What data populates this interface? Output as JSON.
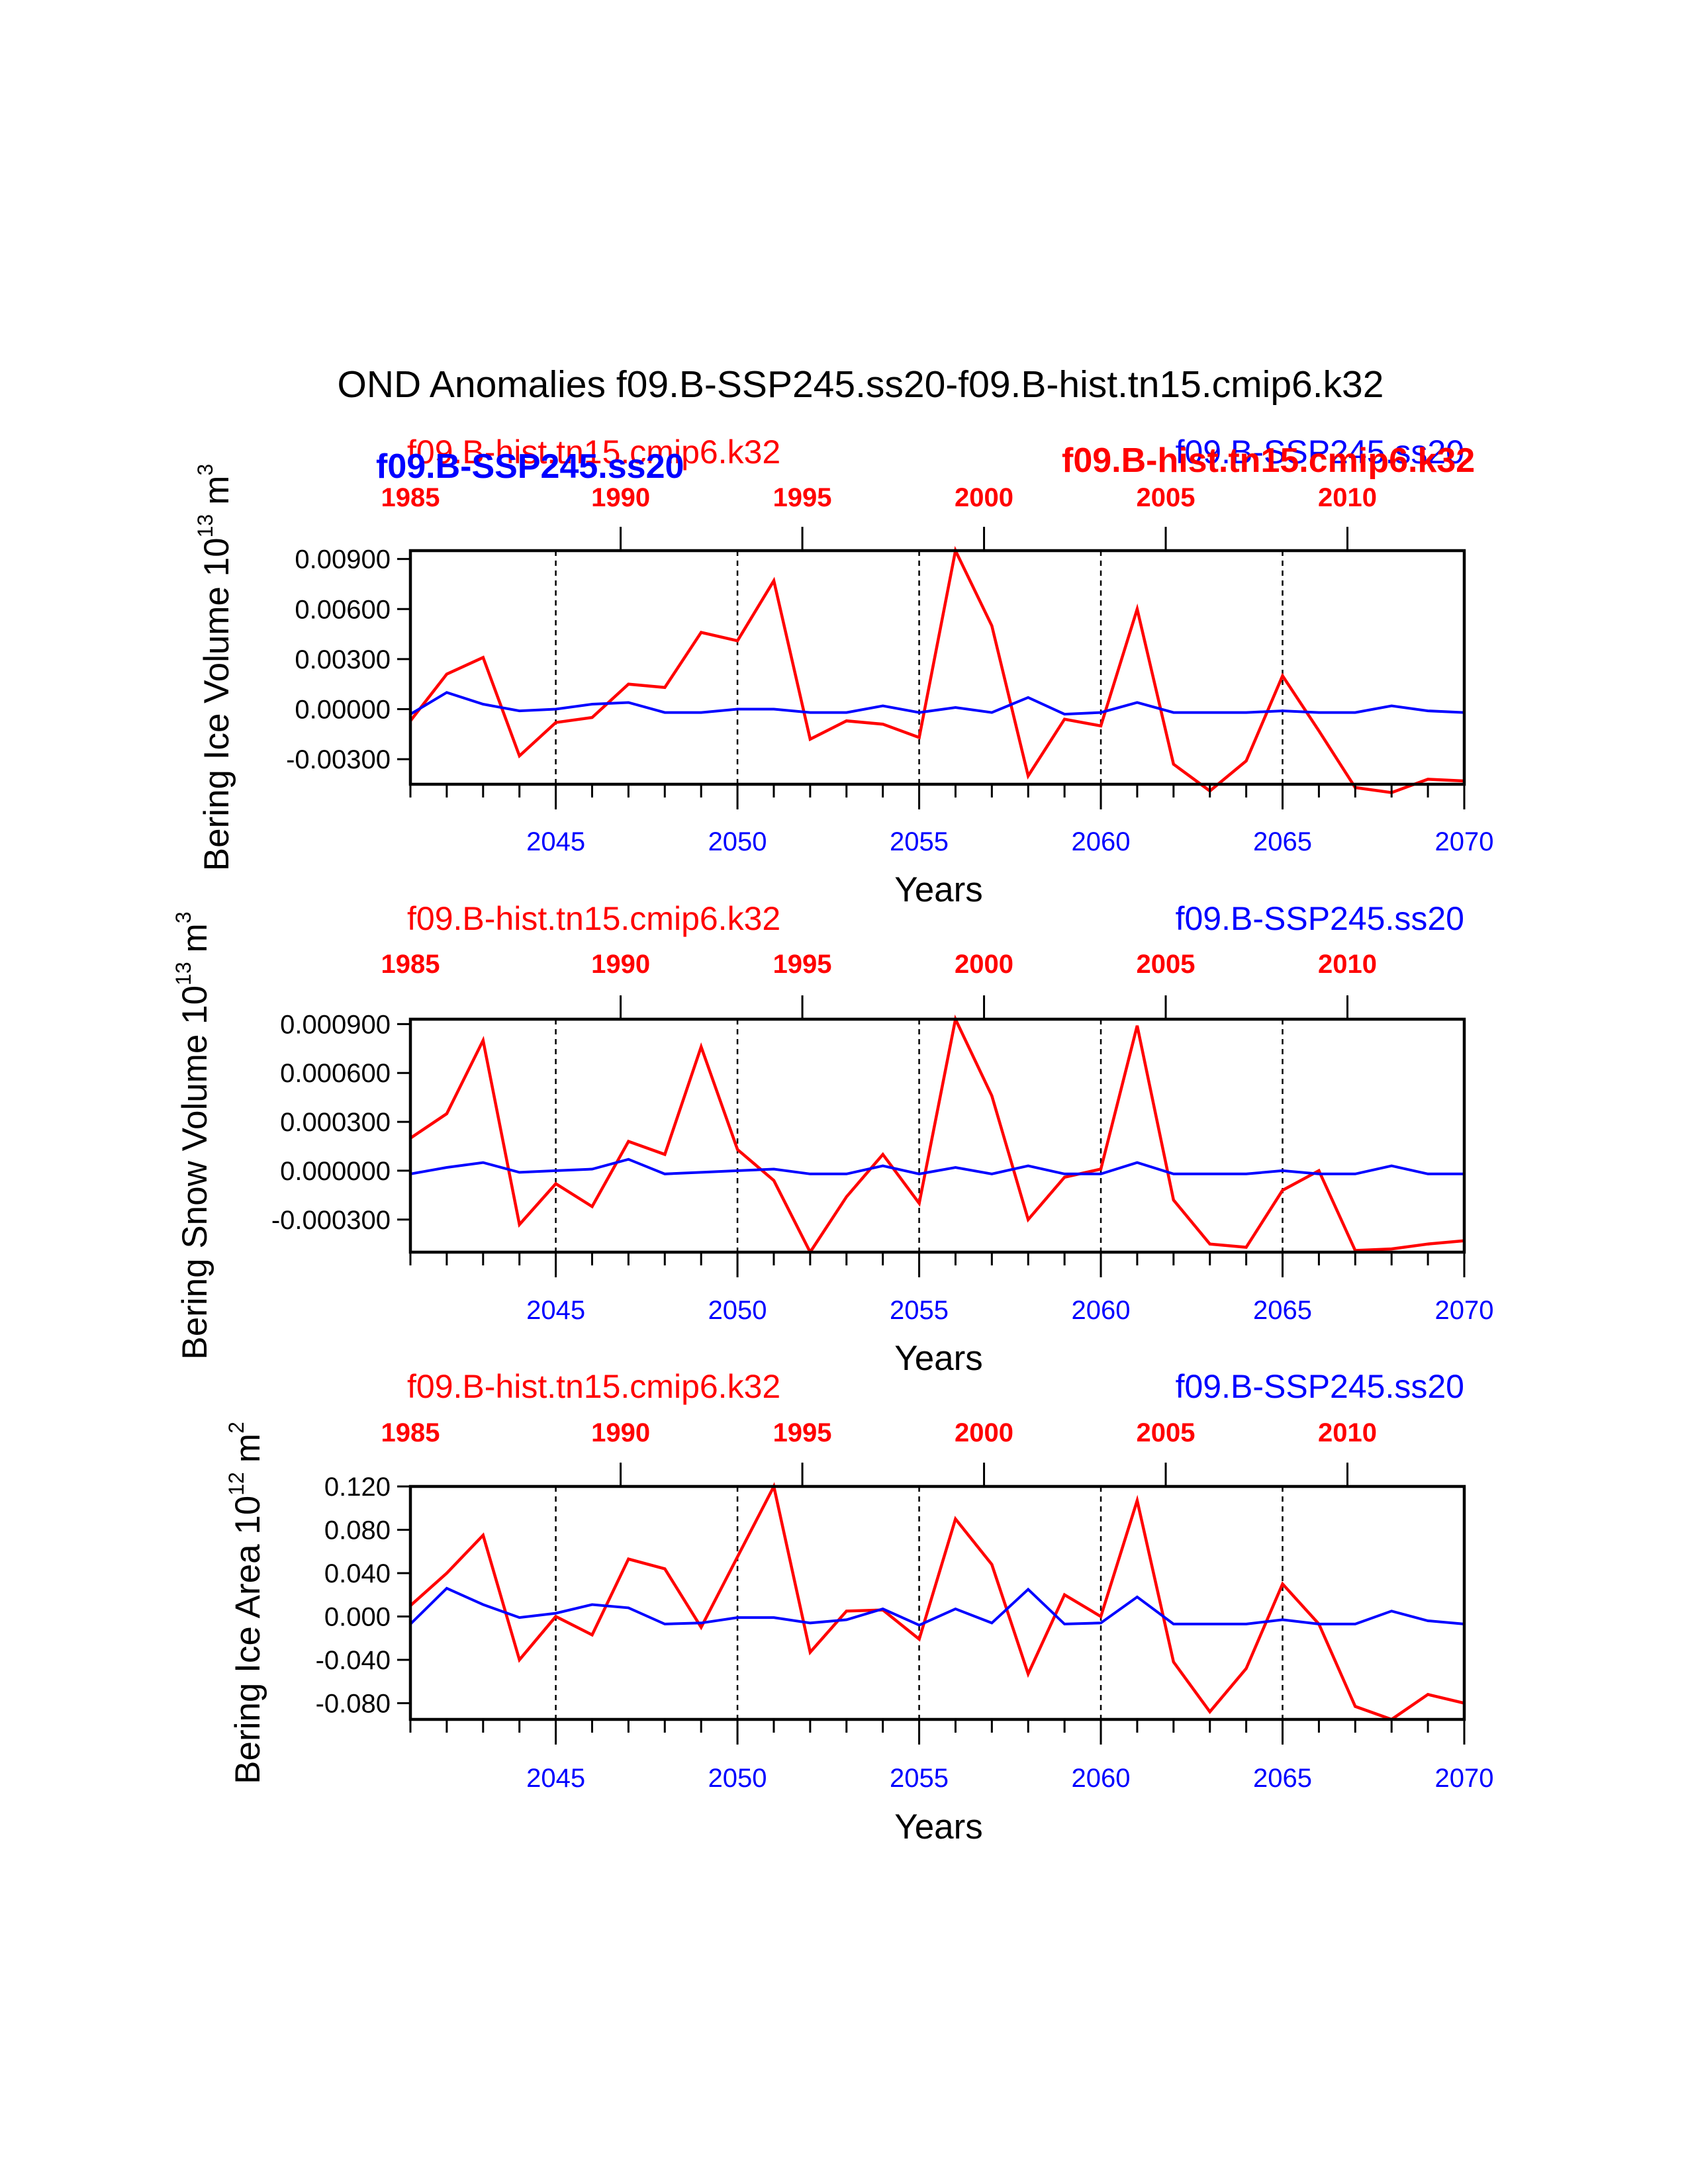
{
  "title": "OND Anomalies f09.B-SSP245.ss20-f09.B-hist.tn15.cmip6.k32",
  "colors": {
    "hist": "#ff0000",
    "ssp": "#0000ff",
    "axis": "#000000"
  },
  "legend": {
    "hist_name": "f09.B-hist.tn15.cmip6.k32",
    "ssp_name": "f09.B-SSP245.ss20",
    "overlay_ssp_bold": "f09.B-SSP245.ss20",
    "overlay_hist_bold": "f09.B-hist.tn15.cmip6.k32"
  },
  "chart_data": [
    {
      "type": "line",
      "ylabel": "Bering Ice Volume 10^13 m^3",
      "ylabel_base": "Bering Ice Volume 10",
      "ylabel_exp": "13",
      "ylabel_unit": "m",
      "ylabel_unit_exp": "3",
      "xlabel": "Years",
      "xlim": [
        2041,
        2070
      ],
      "ylim": [
        -0.0045,
        0.0095
      ],
      "yticks": [
        -0.003,
        0.0,
        0.003,
        0.006,
        0.009
      ],
      "ytick_labels": [
        "-0.00300",
        "0.00000",
        "0.00300",
        "0.00600",
        "0.00900"
      ],
      "bottom_xticks": [
        2045,
        2050,
        2055,
        2060,
        2065,
        2070
      ],
      "top_xtick_labels": [
        "1985",
        "1990",
        "1995",
        "2000",
        "2005",
        "2010"
      ],
      "dashed_years": [
        2045,
        2050,
        2055,
        2060,
        2065
      ],
      "x": [
        2041,
        2042,
        2043,
        2044,
        2045,
        2046,
        2047,
        2048,
        2049,
        2050,
        2051,
        2052,
        2053,
        2054,
        2055,
        2056,
        2057,
        2058,
        2059,
        2060,
        2061,
        2062,
        2063,
        2064,
        2065,
        2066,
        2067,
        2068,
        2069,
        2070
      ],
      "series": [
        {
          "name": "f09.B-hist.tn15.cmip6.k32",
          "values": [
            -0.0007,
            0.0021,
            0.0031,
            -0.0028,
            -0.0008,
            -0.0005,
            0.0015,
            0.0013,
            0.0046,
            0.0041,
            0.0077,
            -0.0018,
            -0.0007,
            -0.0009,
            -0.0017,
            0.0095,
            0.005,
            -0.004,
            -0.0006,
            -0.001,
            0.006,
            -0.0033,
            -0.0049,
            -0.0031,
            0.002,
            -0.0013,
            -0.0047,
            -0.005,
            -0.0042,
            -0.0043
          ]
        },
        {
          "name": "f09.B-SSP245.ss20",
          "values": [
            -0.0003,
            0.001,
            0.0003,
            -0.0001,
            0.0,
            0.0003,
            0.0004,
            -0.0002,
            -0.0002,
            0.0,
            0.0,
            -0.0002,
            -0.0002,
            0.0002,
            -0.0002,
            0.0001,
            -0.0002,
            0.0007,
            -0.0003,
            -0.0002,
            0.0004,
            -0.0002,
            -0.0002,
            -0.0002,
            -0.0001,
            -0.0002,
            -0.0002,
            0.0002,
            -0.0001,
            -0.0002
          ]
        }
      ]
    },
    {
      "type": "line",
      "ylabel": "Bering Snow Volume 10^13 m^3",
      "ylabel_base": "Bering Snow Volume 10",
      "ylabel_exp": "13",
      "ylabel_unit": "m",
      "ylabel_unit_exp": "3",
      "xlabel": "Years",
      "xlim": [
        2041,
        2070
      ],
      "ylim": [
        -0.0005,
        0.00093
      ],
      "yticks": [
        -0.0003,
        0.0,
        0.0003,
        0.0006,
        0.0009
      ],
      "ytick_labels": [
        "-0.000300",
        "0.000000",
        "0.000300",
        "0.000600",
        "0.000900"
      ],
      "bottom_xticks": [
        2045,
        2050,
        2055,
        2060,
        2065,
        2070
      ],
      "top_xtick_labels": [
        "1985",
        "1990",
        "1995",
        "2000",
        "2005",
        "2010"
      ],
      "dashed_years": [
        2045,
        2050,
        2055,
        2060,
        2065
      ],
      "x": [
        2041,
        2042,
        2043,
        2044,
        2045,
        2046,
        2047,
        2048,
        2049,
        2050,
        2051,
        2052,
        2053,
        2054,
        2055,
        2056,
        2057,
        2058,
        2059,
        2060,
        2061,
        2062,
        2063,
        2064,
        2065,
        2066,
        2067,
        2068,
        2069,
        2070
      ],
      "series": [
        {
          "name": "f09.B-hist.tn15.cmip6.k32",
          "values": [
            0.0002,
            0.00035,
            0.0008,
            -0.00033,
            -8e-05,
            -0.00022,
            0.00018,
            0.0001,
            0.00076,
            0.00013,
            -6e-05,
            -0.0005,
            -0.00016,
            0.0001,
            -0.0002,
            0.00093,
            0.00046,
            -0.0003,
            -4e-05,
            1e-05,
            0.00089,
            -0.00018,
            -0.00045,
            -0.00047,
            -0.00012,
            0.0,
            -0.00049,
            -0.00048,
            -0.00045,
            -0.00043
          ]
        },
        {
          "name": "f09.B-SSP245.ss20",
          "values": [
            -2e-05,
            2e-05,
            5e-05,
            -1e-05,
            0.0,
            1e-05,
            7e-05,
            -2e-05,
            -1e-05,
            0.0,
            1e-05,
            -2e-05,
            -2e-05,
            3e-05,
            -2e-05,
            2e-05,
            -2e-05,
            3e-05,
            -2e-05,
            -2e-05,
            5e-05,
            -2e-05,
            -2e-05,
            -2e-05,
            0.0,
            -2e-05,
            -2e-05,
            3e-05,
            -2e-05,
            -2e-05
          ]
        }
      ]
    },
    {
      "type": "line",
      "ylabel": "Bering Ice Area 10^12 m^2",
      "ylabel_base": "Bering Ice Area 10",
      "ylabel_exp": "12",
      "ylabel_unit": "m",
      "ylabel_unit_exp": "2",
      "xlabel": "Years",
      "xlim": [
        2041,
        2070
      ],
      "ylim": [
        -0.095,
        0.12
      ],
      "yticks": [
        -0.08,
        -0.04,
        0.0,
        0.04,
        0.08,
        0.12
      ],
      "ytick_labels": [
        "-0.080",
        "-0.040",
        "0.000",
        "0.040",
        "0.080",
        "0.120"
      ],
      "bottom_xticks": [
        2045,
        2050,
        2055,
        2060,
        2065,
        2070
      ],
      "top_xtick_labels": [
        "1985",
        "1990",
        "1995",
        "2000",
        "2005",
        "2010"
      ],
      "dashed_years": [
        2045,
        2050,
        2055,
        2060,
        2065
      ],
      "x": [
        2041,
        2042,
        2043,
        2044,
        2045,
        2046,
        2047,
        2048,
        2049,
        2050,
        2051,
        2052,
        2053,
        2054,
        2055,
        2056,
        2057,
        2058,
        2059,
        2060,
        2061,
        2062,
        2063,
        2064,
        2065,
        2066,
        2067,
        2068,
        2069,
        2070
      ],
      "series": [
        {
          "name": "f09.B-hist.tn15.cmip6.k32",
          "values": [
            0.01,
            0.04,
            0.075,
            -0.04,
            0.0,
            -0.017,
            0.053,
            0.044,
            -0.01,
            0.055,
            0.12,
            -0.033,
            0.005,
            0.006,
            -0.021,
            0.09,
            0.048,
            -0.053,
            0.02,
            0.0,
            0.107,
            -0.042,
            -0.088,
            -0.048,
            0.03,
            -0.007,
            -0.083,
            -0.095,
            -0.072,
            -0.08
          ]
        },
        {
          "name": "f09.B-SSP245.ss20",
          "values": [
            -0.007,
            0.026,
            0.011,
            -0.001,
            0.003,
            0.011,
            0.008,
            -0.007,
            -0.006,
            -0.001,
            -0.001,
            -0.006,
            -0.003,
            0.007,
            -0.008,
            0.007,
            -0.006,
            0.025,
            -0.007,
            -0.006,
            0.018,
            -0.007,
            -0.007,
            -0.007,
            -0.003,
            -0.007,
            -0.007,
            0.005,
            -0.004,
            -0.007
          ]
        }
      ]
    }
  ]
}
